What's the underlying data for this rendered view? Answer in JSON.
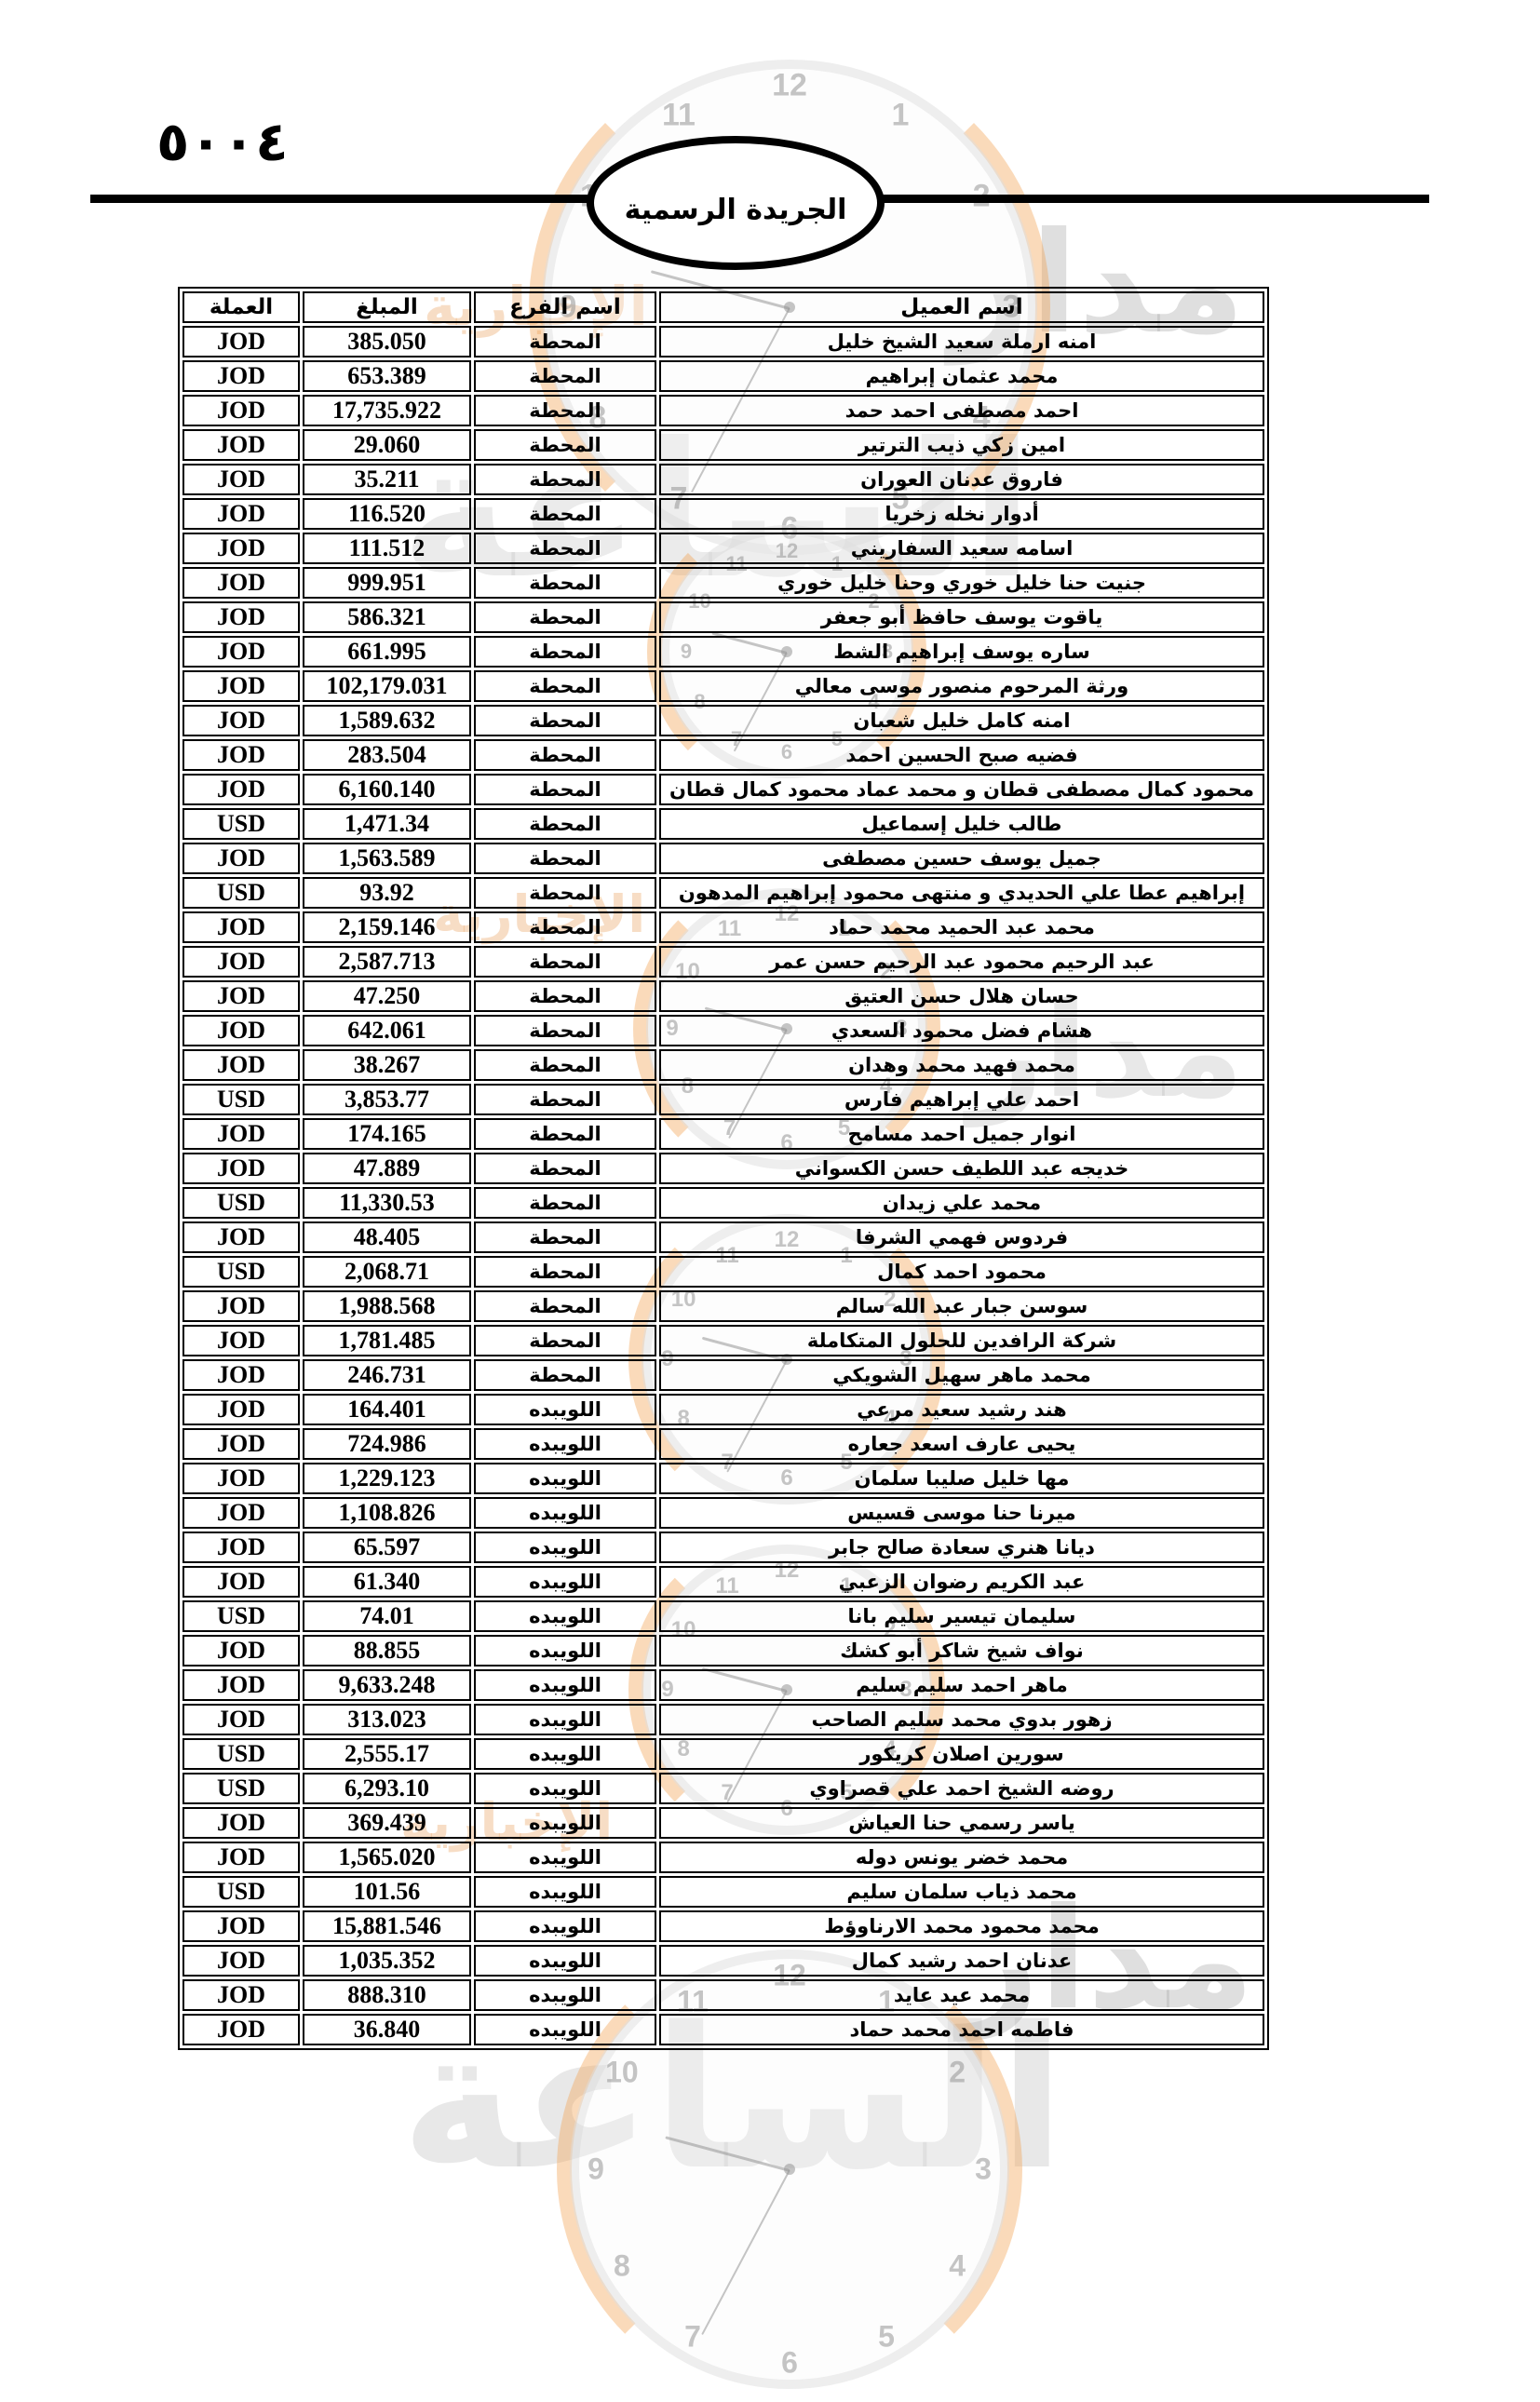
{
  "page": {
    "number": "٥٠٠٤",
    "gazette_title": "الجريدة الرسمية"
  },
  "watermark": {
    "agency_word1": "مدار",
    "agency_word2": "الساعة",
    "tagline": "الإخبارية",
    "clock_numbers": [
      "12",
      "1",
      "2",
      "3",
      "4",
      "5",
      "6",
      "7",
      "8",
      "9",
      "10",
      "11"
    ],
    "orange": "#f29e4a",
    "gray": "#c8c8c8"
  },
  "table": {
    "headers": {
      "client": "اسم العميل",
      "branch": "اسم الفرع",
      "amount": "المبلغ",
      "currency": "العملة"
    },
    "rows": [
      {
        "client": "امنه ارملة سعيد الشيخ خليل",
        "branch": "المحطة",
        "amount": "385.050",
        "currency": "JOD"
      },
      {
        "client": "محمد عثمان إبراهيم",
        "branch": "المحطة",
        "amount": "653.389",
        "currency": "JOD"
      },
      {
        "client": "احمد مصطفى احمد حمد",
        "branch": "المحطة",
        "amount": "17,735.922",
        "currency": "JOD"
      },
      {
        "client": "امين زكي ذيب الترتير",
        "branch": "المحطة",
        "amount": "29.060",
        "currency": "JOD"
      },
      {
        "client": "فاروق عدنان العوران",
        "branch": "المحطة",
        "amount": "35.211",
        "currency": "JOD"
      },
      {
        "client": "أدوار نخله زخريا",
        "branch": "المحطة",
        "amount": "116.520",
        "currency": "JOD"
      },
      {
        "client": "اسامه سعيد السفاريني",
        "branch": "المحطة",
        "amount": "111.512",
        "currency": "JOD"
      },
      {
        "client": "جنيت حنا خليل خوري وحنا خليل خوري",
        "branch": "المحطة",
        "amount": "999.951",
        "currency": "JOD"
      },
      {
        "client": "ياقوت يوسف حافظ أبو جعفر",
        "branch": "المحطة",
        "amount": "586.321",
        "currency": "JOD"
      },
      {
        "client": "ساره يوسف إبراهيم الشط",
        "branch": "المحطة",
        "amount": "661.995",
        "currency": "JOD"
      },
      {
        "client": "ورثة المرحوم منصور موسى معالي",
        "branch": "المحطة",
        "amount": "102,179.031",
        "currency": "JOD"
      },
      {
        "client": "امنه كامل خليل شعبان",
        "branch": "المحطة",
        "amount": "1,589.632",
        "currency": "JOD"
      },
      {
        "client": "فضيه صبح الحسين احمد",
        "branch": "المحطة",
        "amount": "283.504",
        "currency": "JOD"
      },
      {
        "client": "محمود كمال مصطفى قطان و محمد عماد محمود كمال قطان",
        "branch": "المحطة",
        "amount": "6,160.140",
        "currency": "JOD"
      },
      {
        "client": "طالب خليل إسماعيل",
        "branch": "المحطة",
        "amount": "1,471.34",
        "currency": "USD"
      },
      {
        "client": "جميل يوسف حسين مصطفى",
        "branch": "المحطة",
        "amount": "1,563.589",
        "currency": "JOD"
      },
      {
        "client": "إبراهيم عطا علي الحديدي و منتهى محمود إبراهيم المدهون",
        "branch": "المحطة",
        "amount": "93.92",
        "currency": "USD"
      },
      {
        "client": "محمد عبد الحميد محمد حماد",
        "branch": "المحطة",
        "amount": "2,159.146",
        "currency": "JOD"
      },
      {
        "client": "عبد الرحيم محمود عبد الرحيم حسن عمر",
        "branch": "المحطة",
        "amount": "2,587.713",
        "currency": "JOD"
      },
      {
        "client": "حسان هلال حسن العتيق",
        "branch": "المحطة",
        "amount": "47.250",
        "currency": "JOD"
      },
      {
        "client": "هشام فضل محمود السعدي",
        "branch": "المحطة",
        "amount": "642.061",
        "currency": "JOD"
      },
      {
        "client": "محمد فهيد محمد وهدان",
        "branch": "المحطة",
        "amount": "38.267",
        "currency": "JOD"
      },
      {
        "client": "احمد علي إبراهيم فارس",
        "branch": "المحطة",
        "amount": "3,853.77",
        "currency": "USD"
      },
      {
        "client": "انوار جميل احمد مسامح",
        "branch": "المحطة",
        "amount": "174.165",
        "currency": "JOD"
      },
      {
        "client": "خديجه عبد اللطيف حسن الكسواني",
        "branch": "المحطة",
        "amount": "47.889",
        "currency": "JOD"
      },
      {
        "client": "محمد علي زيدان",
        "branch": "المحطة",
        "amount": "11,330.53",
        "currency": "USD"
      },
      {
        "client": "فردوس فهمي الشرفا",
        "branch": "المحطة",
        "amount": "48.405",
        "currency": "JOD"
      },
      {
        "client": "محمود احمد كمال",
        "branch": "المحطة",
        "amount": "2,068.71",
        "currency": "USD"
      },
      {
        "client": "سوسن جبار عبد الله سالم",
        "branch": "المحطة",
        "amount": "1,988.568",
        "currency": "JOD"
      },
      {
        "client": "شركة الرافدين للحلول المتكاملة",
        "branch": "المحطة",
        "amount": "1,781.485",
        "currency": "JOD"
      },
      {
        "client": "محمد ماهر سهيل الشويكي",
        "branch": "المحطة",
        "amount": "246.731",
        "currency": "JOD"
      },
      {
        "client": "هند رشيد سعيد مرعي",
        "branch": "اللويبده",
        "amount": "164.401",
        "currency": "JOD"
      },
      {
        "client": "يحيى عارف اسعد جعاره",
        "branch": "اللويبده",
        "amount": "724.986",
        "currency": "JOD"
      },
      {
        "client": "مها خليل صليبا سلمان",
        "branch": "اللويبده",
        "amount": "1,229.123",
        "currency": "JOD"
      },
      {
        "client": "ميرنا حنا موسى قسيس",
        "branch": "اللويبده",
        "amount": "1,108.826",
        "currency": "JOD"
      },
      {
        "client": "ديانا هنري سعادة صالح جابر",
        "branch": "اللويبده",
        "amount": "65.597",
        "currency": "JOD"
      },
      {
        "client": "عبد الكريم رضوان الزعبي",
        "branch": "اللويبده",
        "amount": "61.340",
        "currency": "JOD"
      },
      {
        "client": "سليمان تيسير سليم بانا",
        "branch": "اللويبده",
        "amount": "74.01",
        "currency": "USD"
      },
      {
        "client": "نواف شيخ شاكر أبو كشك",
        "branch": "اللويبده",
        "amount": "88.855",
        "currency": "JOD"
      },
      {
        "client": "ماهر احمد سليم سليم",
        "branch": "اللويبده",
        "amount": "9,633.248",
        "currency": "JOD"
      },
      {
        "client": "زهور بدوي محمد سليم الصاحب",
        "branch": "اللويبده",
        "amount": "313.023",
        "currency": "JOD"
      },
      {
        "client": "سورين اصلان كريكور",
        "branch": "اللويبده",
        "amount": "2,555.17",
        "currency": "USD"
      },
      {
        "client": "روضه الشيخ احمد علي قصراوي",
        "branch": "اللويبده",
        "amount": "6,293.10",
        "currency": "USD"
      },
      {
        "client": "ياسر رسمي حنا العياش",
        "branch": "اللويبده",
        "amount": "369.439",
        "currency": "JOD"
      },
      {
        "client": "محمد خضر يونس دوله",
        "branch": "اللويبده",
        "amount": "1,565.020",
        "currency": "JOD"
      },
      {
        "client": "محمد ذياب سلمان سليم",
        "branch": "اللويبده",
        "amount": "101.56",
        "currency": "USD"
      },
      {
        "client": "محمد محمود محمد الارناوؤط",
        "branch": "اللويبده",
        "amount": "15,881.546",
        "currency": "JOD"
      },
      {
        "client": "عدنان احمد رشيد كمال",
        "branch": "اللويبده",
        "amount": "1,035.352",
        "currency": "JOD"
      },
      {
        "client": "محمد عيد عايد",
        "branch": "اللويبده",
        "amount": "888.310",
        "currency": "JOD"
      },
      {
        "client": "فاطمه احمد محمد حماد",
        "branch": "اللويبده",
        "amount": "36.840",
        "currency": "JOD"
      }
    ]
  }
}
